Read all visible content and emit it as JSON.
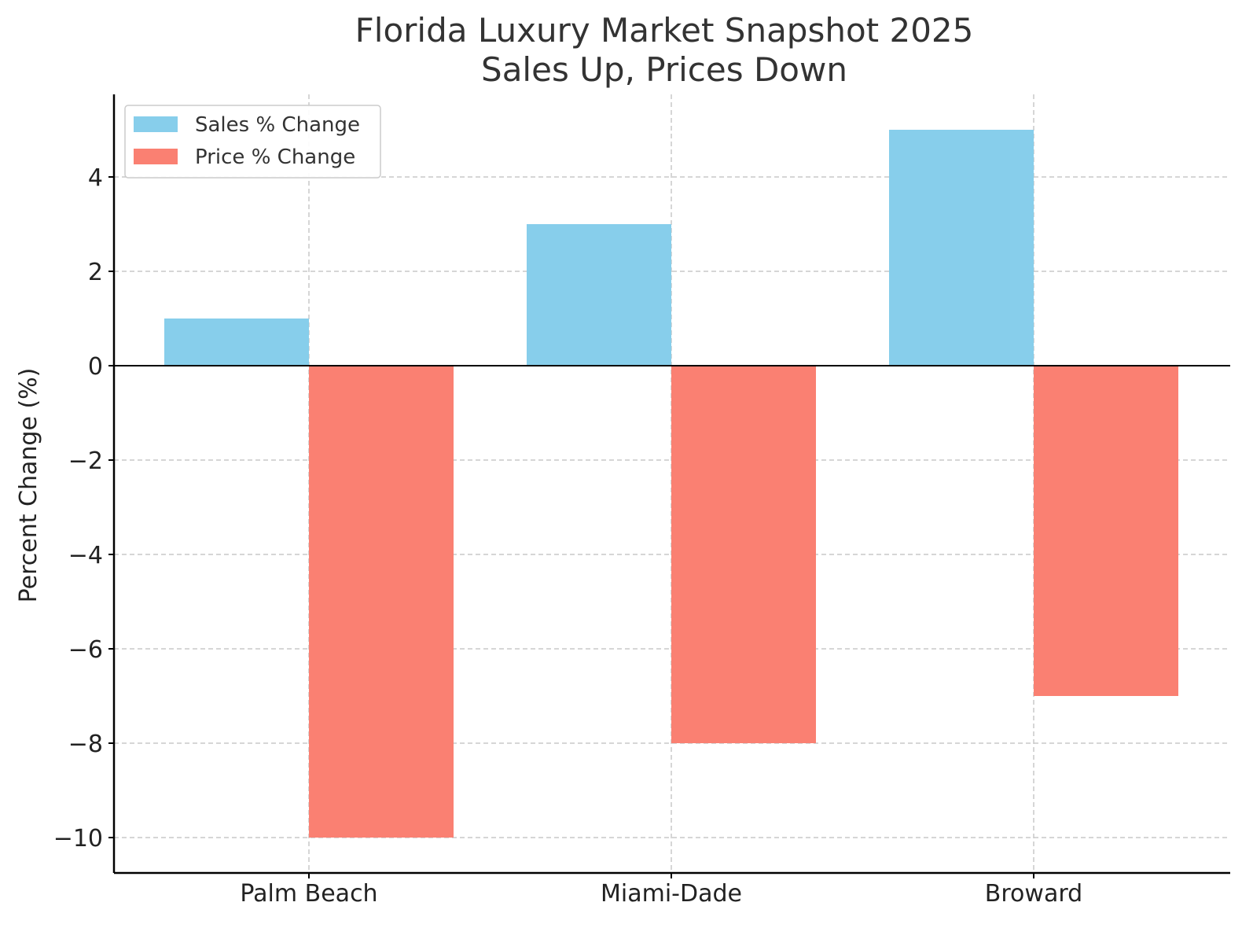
{
  "chart_data": {
    "type": "bar",
    "title": "Florida Luxury Market Snapshot 2025\nSales Up, Prices Down",
    "title_lines": [
      "Florida Luxury Market Snapshot 2025",
      "Sales Up, Prices Down"
    ],
    "xlabel": "",
    "ylabel": "Percent Change (%)",
    "categories": [
      "Palm Beach",
      "Miami-Dade",
      "Broward"
    ],
    "series": [
      {
        "name": "Sales % Change",
        "values": [
          1,
          3,
          5
        ],
        "color": "#87CEEB"
      },
      {
        "name": "Price % Change",
        "values": [
          -10,
          -8,
          -7
        ],
        "color": "#FA8072"
      }
    ],
    "ylim": [
      -10.75,
      5.75
    ],
    "yticks": [
      4,
      2,
      0,
      -2,
      -4,
      -6,
      -8,
      -10
    ],
    "ytick_labels": [
      "4",
      "2",
      "0",
      "−2",
      "−4",
      "−6",
      "−8",
      "−10"
    ],
    "grid": true,
    "zero_line": true,
    "legend_position": "upper-left"
  }
}
